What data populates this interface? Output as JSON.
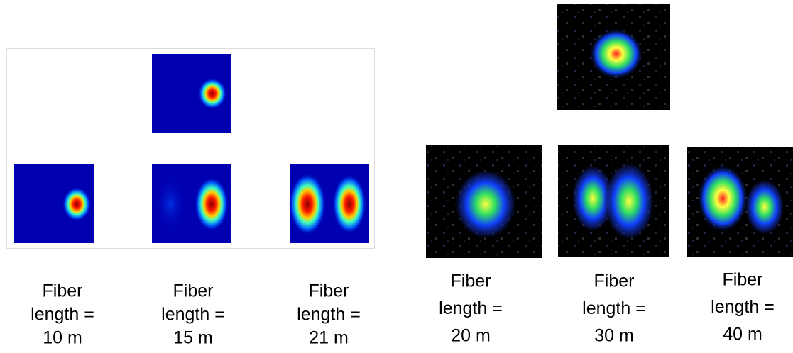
{
  "simulated_captions": [
    {
      "lines": [
        "Fiber",
        "length =",
        "10 m"
      ]
    },
    {
      "lines": [
        "Fiber",
        "length =",
        "15 m"
      ]
    },
    {
      "lines": [
        "Fiber",
        "length =",
        "21 m"
      ]
    }
  ],
  "experimental_captions": [
    {
      "lines": [
        "Fiber",
        "length =",
        "20 m"
      ]
    },
    {
      "lines": [
        "Fiber",
        "length =",
        "30 m"
      ]
    },
    {
      "lines": [
        "Fiber",
        "length =",
        "40 m"
      ]
    }
  ]
}
